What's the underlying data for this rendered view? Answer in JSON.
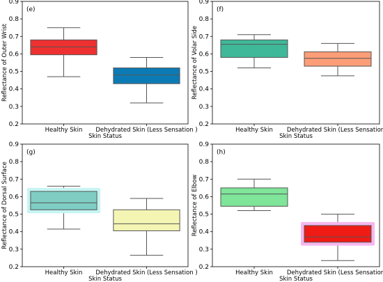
{
  "chart_data": [
    {
      "type": "box",
      "panel_label": "(e)",
      "ylabel": "Reflectance of Outer Wrist",
      "xlabel": "Skin Status",
      "ylim": [
        0.2,
        0.9
      ],
      "yticks": [
        "0.2",
        "0.3",
        "0.4",
        "0.5",
        "0.6",
        "0.7",
        "0.8",
        "0.9"
      ],
      "categories": [
        "Healthy Skin",
        "Dehydrated Skin (Less Sensation )"
      ],
      "boxes": [
        {
          "whislo": 0.47,
          "q1": 0.595,
          "med": 0.64,
          "q3": 0.68,
          "whishi": 0.75,
          "color": "#ee3030"
        },
        {
          "whislo": 0.32,
          "q1": 0.43,
          "med": 0.48,
          "q3": 0.52,
          "whishi": 0.58,
          "color": "#0c7bb5"
        }
      ]
    },
    {
      "type": "box",
      "panel_label": "(f)",
      "ylabel": "Reflectance of Volar Side",
      "xlabel": "Skin Status",
      "ylim": [
        0.2,
        0.9
      ],
      "yticks": [
        "0.2",
        "0.3",
        "0.4",
        "0.5",
        "0.6",
        "0.7",
        "0.8",
        "0.9"
      ],
      "categories": [
        "Healthy Skin",
        "Dehydrated Skin (Less Sensation )"
      ],
      "boxes": [
        {
          "whislo": 0.52,
          "q1": 0.58,
          "med": 0.655,
          "q3": 0.68,
          "whishi": 0.71,
          "color": "#3fb89a"
        },
        {
          "whislo": 0.475,
          "q1": 0.53,
          "med": 0.575,
          "q3": 0.612,
          "whishi": 0.66,
          "color": "#fb9d77"
        }
      ]
    },
    {
      "type": "box",
      "panel_label": "(g)",
      "ylabel": "Reflectance of Dorsal Surface",
      "xlabel": "Skin Status",
      "ylim": [
        0.2,
        0.9
      ],
      "yticks": [
        "0.2",
        "0.3",
        "0.4",
        "0.5",
        "0.6",
        "0.7",
        "0.8",
        "0.9"
      ],
      "categories": [
        "Healthy Skin",
        "Dehydrated Skin (Less Sensation )"
      ],
      "boxes": [
        {
          "whislo": 0.415,
          "q1": 0.525,
          "med": 0.565,
          "q3": 0.63,
          "whishi": 0.66,
          "color": "#7fcdc3",
          "glow": "#c6f4f2"
        },
        {
          "whislo": 0.265,
          "q1": 0.405,
          "med": 0.445,
          "q3": 0.525,
          "whishi": 0.59,
          "color": "#f4f5b3"
        }
      ]
    },
    {
      "type": "box",
      "panel_label": "(h)",
      "ylabel": "Reflectance of Elbow",
      "xlabel": "Skin Status",
      "ylim": [
        0.2,
        0.9
      ],
      "yticks": [
        "0.2",
        "0.3",
        "0.4",
        "0.5",
        "0.6",
        "0.7",
        "0.8",
        "0.9"
      ],
      "categories": [
        "Healthy Skin",
        "Dehydrated Skin (Less Sensation )"
      ],
      "boxes": [
        {
          "whislo": 0.52,
          "q1": 0.545,
          "med": 0.615,
          "q3": 0.65,
          "whishi": 0.7,
          "color": "#7ee599"
        },
        {
          "whislo": 0.235,
          "q1": 0.34,
          "med": 0.37,
          "q3": 0.435,
          "whishi": 0.5,
          "color": "#f01b15",
          "glow": "#f6b7ee"
        }
      ]
    }
  ]
}
